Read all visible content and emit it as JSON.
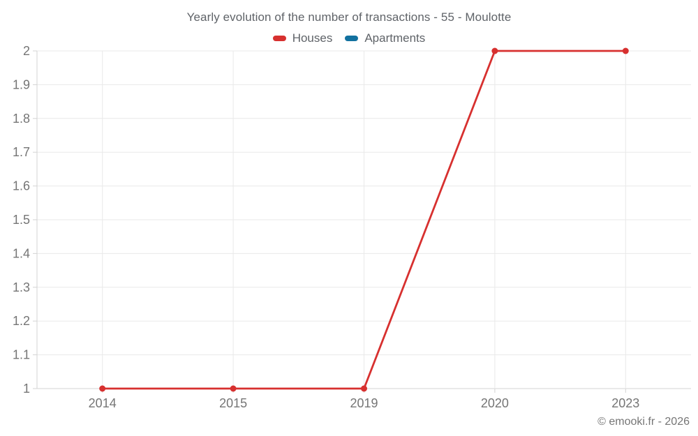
{
  "header": {
    "title": "Yearly evolution of the number of transactions - 55 - Moulotte"
  },
  "chart_data": {
    "type": "line",
    "title": "Yearly evolution of the number of transactions - 55 - Moulotte",
    "categories": [
      "2014",
      "2015",
      "2019",
      "2020",
      "2023"
    ],
    "series": [
      {
        "name": "Houses",
        "color": "#d7302f",
        "values": [
          1,
          1,
          1,
          2,
          2
        ]
      },
      {
        "name": "Apartments",
        "color": "#12719f",
        "values": []
      }
    ],
    "xlabel": "",
    "ylabel": "",
    "ylim": [
      1,
      2
    ],
    "ytick_labels": [
      "1",
      "1.1",
      "1.2",
      "1.3",
      "1.4",
      "1.5",
      "1.6",
      "1.7",
      "1.8",
      "1.9",
      "2"
    ],
    "grid": true,
    "legend_position": "top",
    "marker": "circle"
  },
  "footer": {
    "credit": "© emooki.fr - 2026"
  },
  "colors": {
    "background": "#ffffff",
    "grid": "#e9e9e9",
    "axis": "#d3d3d3",
    "title_text": "#5f6368",
    "tick_text": "#757575"
  }
}
